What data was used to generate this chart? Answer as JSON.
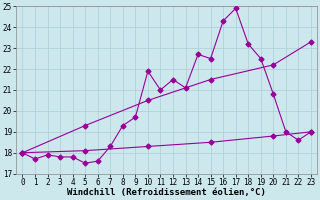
{
  "xlabel": "Windchill (Refroidissement éolien,°C)",
  "background_color": "#cce8ed",
  "grid_color": "#aacdd5",
  "line_color": "#990099",
  "xlim_min": -0.5,
  "xlim_max": 23.5,
  "ylim": [
    17,
    25
  ],
  "yticks": [
    17,
    18,
    19,
    20,
    21,
    22,
    23,
    24,
    25
  ],
  "xticks": [
    0,
    1,
    2,
    3,
    4,
    5,
    6,
    7,
    8,
    9,
    10,
    11,
    12,
    13,
    14,
    15,
    16,
    17,
    18,
    19,
    20,
    21,
    22,
    23
  ],
  "line_jagged_x": [
    0,
    1,
    2,
    3,
    4,
    5,
    6,
    7,
    8,
    9,
    10,
    11,
    12,
    13,
    14,
    15,
    16,
    17,
    18,
    19,
    20,
    21,
    22,
    23
  ],
  "line_jagged_y": [
    18.0,
    17.7,
    17.9,
    17.8,
    17.8,
    17.5,
    17.6,
    18.3,
    19.3,
    19.7,
    21.9,
    21.0,
    21.5,
    21.1,
    22.7,
    22.5,
    24.3,
    24.9,
    23.2,
    22.5,
    20.8,
    19.0,
    18.6,
    19.0
  ],
  "line_upper_x": [
    0,
    5,
    10,
    15,
    20,
    23
  ],
  "line_upper_y": [
    18.0,
    19.3,
    20.5,
    21.5,
    22.2,
    23.3
  ],
  "line_lower_x": [
    0,
    5,
    10,
    15,
    20,
    23
  ],
  "line_lower_y": [
    18.0,
    18.1,
    18.3,
    18.5,
    18.8,
    19.0
  ],
  "marker": "D",
  "markersize": 2.5,
  "linewidth": 0.8,
  "tick_fontsize": 5.5,
  "xlabel_fontsize": 6.5
}
